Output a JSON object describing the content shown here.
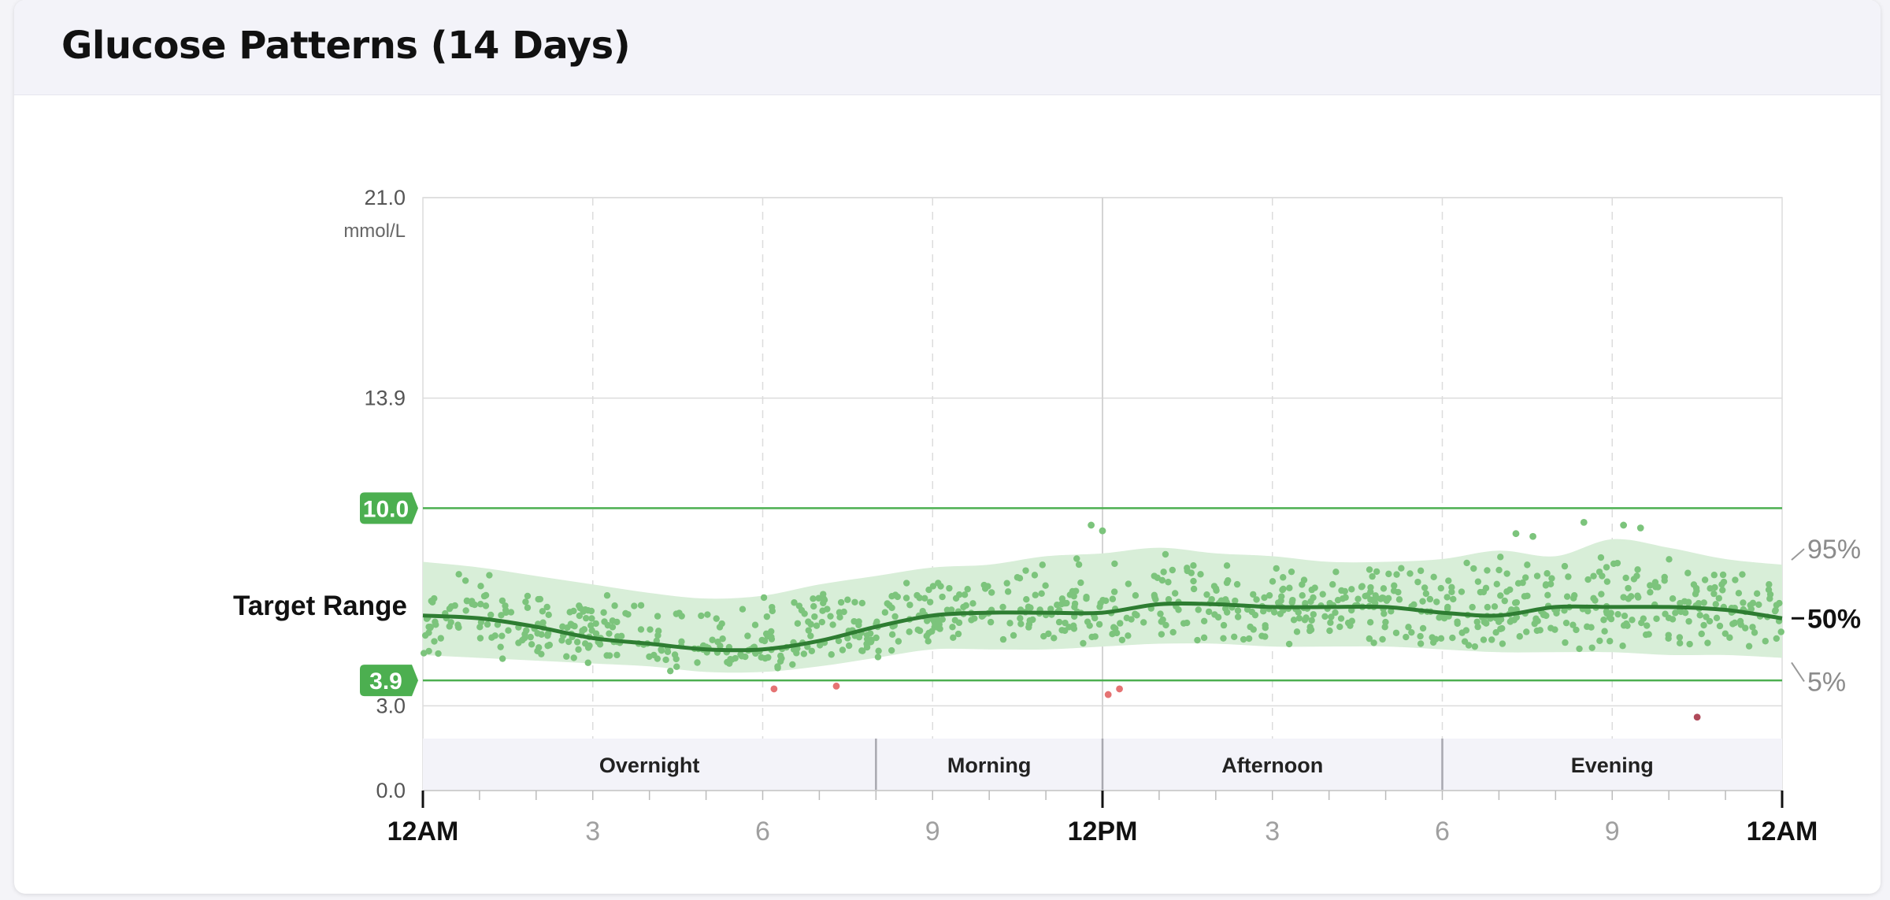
{
  "card": {
    "title": "Glucose Patterns (14 Days)"
  },
  "chart_data": {
    "type": "scatter",
    "title": "Glucose Patterns (14 Days)",
    "ylabel": "mmol/L",
    "ylim": [
      0,
      21
    ],
    "xlim": [
      0,
      24
    ],
    "y_ticks": [
      {
        "value": 0,
        "label": "0.0"
      },
      {
        "value": 3.0,
        "label": "3.0"
      },
      {
        "value": 13.9,
        "label": "13.9"
      },
      {
        "value": 21.0,
        "label": "21.0"
      }
    ],
    "x_ticks": [
      {
        "hour": 0,
        "label": "12AM",
        "major": true
      },
      {
        "hour": 3,
        "label": "3",
        "major": false
      },
      {
        "hour": 6,
        "label": "6",
        "major": false
      },
      {
        "hour": 9,
        "label": "9",
        "major": false
      },
      {
        "hour": 12,
        "label": "12PM",
        "major": true
      },
      {
        "hour": 15,
        "label": "3",
        "major": false
      },
      {
        "hour": 18,
        "label": "6",
        "major": false
      },
      {
        "hour": 21,
        "label": "9",
        "major": false
      },
      {
        "hour": 24,
        "label": "12AM",
        "major": true
      }
    ],
    "target_range": {
      "label": "Target Range",
      "low": 3.9,
      "high": 10.0,
      "low_label": "3.9",
      "high_label": "10.0",
      "color": "#4caf50"
    },
    "periods": [
      {
        "label": "Overnight",
        "start": 0,
        "end": 8
      },
      {
        "label": "Morning",
        "start": 8,
        "end": 12
      },
      {
        "label": "Afternoon",
        "start": 12,
        "end": 18
      },
      {
        "label": "Evening",
        "start": 18,
        "end": 24
      }
    ],
    "percentile_labels": {
      "p95": "95%",
      "p50": "50%",
      "p5": "5%"
    },
    "percentiles": {
      "hours": [
        0,
        1,
        2,
        3,
        4,
        5,
        6,
        7,
        8,
        9,
        10,
        11,
        12,
        13,
        14,
        15,
        16,
        17,
        18,
        19,
        20,
        21,
        22,
        23,
        24
      ],
      "p95": [
        8.1,
        7.9,
        7.6,
        7.3,
        7.0,
        6.8,
        6.9,
        7.3,
        7.6,
        7.9,
        8.0,
        8.3,
        8.4,
        8.6,
        8.4,
        8.3,
        8.1,
        8.1,
        8.2,
        8.5,
        8.3,
        8.9,
        8.6,
        8.2,
        8.0
      ],
      "p50": [
        6.2,
        6.1,
        5.8,
        5.4,
        5.2,
        5.0,
        5.0,
        5.3,
        5.8,
        6.2,
        6.3,
        6.3,
        6.3,
        6.6,
        6.6,
        6.5,
        6.5,
        6.5,
        6.3,
        6.2,
        6.5,
        6.5,
        6.5,
        6.4,
        6.1
      ],
      "p5": [
        4.8,
        4.7,
        4.6,
        4.5,
        4.4,
        4.2,
        4.2,
        4.4,
        4.7,
        5.0,
        5.0,
        5.0,
        5.1,
        5.2,
        5.2,
        5.1,
        5.1,
        5.1,
        5.0,
        4.9,
        4.9,
        4.9,
        4.8,
        4.8,
        4.7
      ]
    },
    "outliers": [
      {
        "hour": 12.1,
        "value": 3.4,
        "color": "#e57373"
      },
      {
        "hour": 12.3,
        "value": 3.6,
        "color": "#e57373"
      },
      {
        "hour": 6.2,
        "value": 3.6,
        "color": "#e57373"
      },
      {
        "hour": 7.3,
        "value": 3.7,
        "color": "#e57373"
      },
      {
        "hour": 22.5,
        "value": 2.6,
        "color": "#b04a5a"
      },
      {
        "hour": 11.8,
        "value": 9.4,
        "color": "#7cc47c"
      },
      {
        "hour": 12.0,
        "value": 9.2,
        "color": "#7cc47c"
      },
      {
        "hour": 20.5,
        "value": 9.5,
        "color": "#7cc47c"
      },
      {
        "hour": 21.2,
        "value": 9.4,
        "color": "#7cc47c"
      },
      {
        "hour": 21.5,
        "value": 9.3,
        "color": "#7cc47c"
      },
      {
        "hour": 19.3,
        "value": 9.1,
        "color": "#7cc47c"
      },
      {
        "hour": 19.6,
        "value": 9.0,
        "color": "#7cc47c"
      }
    ],
    "readings_per_hour": 40,
    "colors": {
      "points": "#7cc47c",
      "band": "#d8eed8",
      "median": "#2e7d32",
      "grid": "#dcdcdc",
      "period_bg": "#f3f3f9"
    },
    "grid": true
  }
}
